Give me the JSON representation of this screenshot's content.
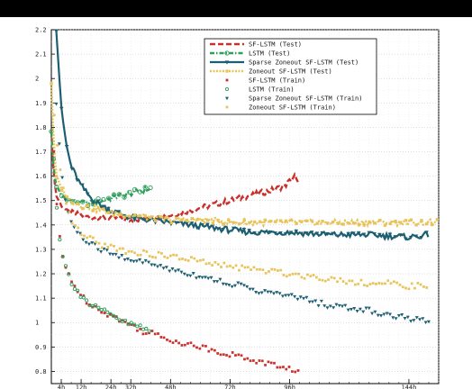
{
  "chart_data": {
    "type": "line",
    "title": "",
    "xlabel": "",
    "ylabel": "",
    "x_unit": "hours",
    "xlim": [
      0,
      156
    ],
    "ylim": [
      0.75,
      2.2
    ],
    "grid": true,
    "legend_position": "top-right",
    "x_ticks": [
      {
        "value": 4,
        "label": "4h"
      },
      {
        "value": 12,
        "label": "12h"
      },
      {
        "value": 24,
        "label": "24h"
      },
      {
        "value": 32,
        "label": "32h"
      },
      {
        "value": 48,
        "label": "48h"
      },
      {
        "value": 72,
        "label": "72h"
      },
      {
        "value": 96,
        "label": "96h"
      },
      {
        "value": 144,
        "label": "144h"
      }
    ],
    "y_ticks": [
      {
        "value": 0.8,
        "label": "0.8"
      },
      {
        "value": 0.9,
        "label": "0.9"
      },
      {
        "value": 1.0,
        "label": "1"
      },
      {
        "value": 1.1,
        "label": "1.1"
      },
      {
        "value": 1.2,
        "label": "1.2"
      },
      {
        "value": 1.3,
        "label": "1.3"
      },
      {
        "value": 1.4,
        "label": "1.4"
      },
      {
        "value": 1.5,
        "label": "1.5"
      },
      {
        "value": 1.6,
        "label": "1.6"
      },
      {
        "value": 1.7,
        "label": "1.7"
      },
      {
        "value": 1.8,
        "label": "1.8"
      },
      {
        "value": 1.9,
        "label": "1.9"
      },
      {
        "value": 2.0,
        "label": "2"
      },
      {
        "value": 2.1,
        "label": "2.1"
      },
      {
        "value": 2.2,
        "label": "2.2"
      }
    ],
    "series": [
      {
        "name": "SF-LSTM (Test)",
        "kind": "line",
        "style": "dashed",
        "marker": "none",
        "color": "#c9302c",
        "x": [
          0,
          1,
          2,
          4,
          6,
          8,
          12,
          16,
          20,
          24,
          32,
          40,
          48,
          56,
          64,
          72,
          80,
          88,
          94,
          96,
          98,
          100
        ],
        "y": [
          1.78,
          1.6,
          1.52,
          1.48,
          1.46,
          1.45,
          1.44,
          1.43,
          1.43,
          1.43,
          1.42,
          1.43,
          1.44,
          1.46,
          1.48,
          1.5,
          1.52,
          1.54,
          1.56,
          1.58,
          1.6,
          1.55
        ]
      },
      {
        "name": "LSTM (Test)",
        "kind": "line",
        "style": "dashdot",
        "marker": "circle",
        "color": "#2e9e5b",
        "x": [
          0,
          1,
          2,
          4,
          6,
          8,
          12,
          16,
          20,
          24,
          28,
          32,
          36,
          40
        ],
        "y": [
          1.78,
          1.62,
          1.56,
          1.52,
          1.51,
          1.5,
          1.49,
          1.49,
          1.5,
          1.51,
          1.52,
          1.53,
          1.54,
          1.55
        ]
      },
      {
        "name": "Sparse Zoneout SF-LSTM (Test)",
        "kind": "line",
        "style": "solid",
        "marker": "triangle",
        "color": "#1d5f72",
        "x": [
          2,
          4,
          6,
          8,
          12,
          16,
          20,
          24,
          32,
          40,
          48,
          56,
          64,
          72,
          80,
          96,
          112,
          128,
          144,
          152
        ],
        "y": [
          2.2,
          1.88,
          1.73,
          1.64,
          1.56,
          1.51,
          1.48,
          1.46,
          1.43,
          1.42,
          1.41,
          1.4,
          1.39,
          1.38,
          1.37,
          1.37,
          1.36,
          1.36,
          1.35,
          1.36
        ]
      },
      {
        "name": "Zoneout SF-LSTM (Test)",
        "kind": "line",
        "style": "dotted",
        "marker": "square",
        "color": "#e8c35a",
        "x": [
          0,
          1,
          2,
          4,
          6,
          8,
          12,
          16,
          20,
          24,
          32,
          40,
          48,
          56,
          64,
          72,
          80,
          96,
          112,
          128,
          144,
          156
        ],
        "y": [
          1.98,
          1.72,
          1.6,
          1.55,
          1.52,
          1.5,
          1.48,
          1.47,
          1.46,
          1.45,
          1.44,
          1.43,
          1.42,
          1.42,
          1.42,
          1.41,
          1.41,
          1.41,
          1.41,
          1.41,
          1.41,
          1.41
        ]
      },
      {
        "name": "SF-LSTM (Train)",
        "kind": "scatter",
        "marker": "square-small",
        "color": "#c9302c",
        "x": [
          1,
          2,
          3,
          4,
          5,
          6,
          8,
          10,
          12,
          14,
          16,
          18,
          20,
          22,
          24,
          26,
          28,
          30,
          32,
          34,
          36,
          38,
          40,
          44,
          48,
          52,
          56,
          60,
          64,
          68,
          72,
          76,
          80,
          84,
          88,
          92,
          96,
          100
        ],
        "y": [
          1.7,
          1.5,
          1.38,
          1.3,
          1.25,
          1.22,
          1.18,
          1.14,
          1.11,
          1.09,
          1.08,
          1.06,
          1.05,
          1.04,
          1.03,
          1.02,
          1.01,
          1.0,
          0.99,
          0.98,
          0.97,
          0.96,
          0.96,
          0.94,
          0.93,
          0.92,
          0.91,
          0.9,
          0.89,
          0.88,
          0.87,
          0.86,
          0.85,
          0.84,
          0.83,
          0.82,
          0.81,
          0.8
        ]
      },
      {
        "name": "LSTM (Train)",
        "kind": "scatter",
        "marker": "circle-small",
        "color": "#2e9e5b",
        "x": [
          1,
          2,
          3,
          4,
          5,
          6,
          8,
          10,
          12,
          14,
          16,
          18,
          20,
          22,
          24,
          26,
          28,
          30,
          32,
          34,
          36,
          38,
          40
        ],
        "y": [
          1.68,
          1.5,
          1.38,
          1.3,
          1.25,
          1.22,
          1.17,
          1.14,
          1.11,
          1.09,
          1.07,
          1.06,
          1.05,
          1.04,
          1.03,
          1.02,
          1.01,
          1.0,
          0.99,
          0.99,
          0.98,
          0.97,
          0.96
        ]
      },
      {
        "name": "Sparse Zoneout SF-LSTM (Train)",
        "kind": "scatter",
        "marker": "triangle-down",
        "color": "#1d5f72",
        "x": [
          2,
          4,
          6,
          8,
          12,
          16,
          20,
          24,
          28,
          32,
          40,
          48,
          56,
          64,
          72,
          80,
          88,
          96,
          104,
          112,
          120,
          128,
          136,
          144,
          152
        ],
        "y": [
          1.9,
          1.62,
          1.48,
          1.41,
          1.35,
          1.32,
          1.3,
          1.28,
          1.27,
          1.26,
          1.24,
          1.22,
          1.2,
          1.18,
          1.16,
          1.14,
          1.12,
          1.11,
          1.09,
          1.07,
          1.06,
          1.05,
          1.03,
          1.02,
          1.0
        ]
      },
      {
        "name": "Zoneout SF-LSTM (Train)",
        "kind": "scatter",
        "marker": "square-small",
        "color": "#e8c35a",
        "x": [
          0,
          2,
          4,
          6,
          8,
          12,
          16,
          20,
          24,
          32,
          40,
          48,
          56,
          64,
          72,
          80,
          88,
          96,
          104,
          112,
          120,
          128,
          136,
          144,
          152
        ],
        "y": [
          1.98,
          1.75,
          1.58,
          1.48,
          1.42,
          1.36,
          1.34,
          1.32,
          1.31,
          1.29,
          1.28,
          1.27,
          1.26,
          1.24,
          1.23,
          1.22,
          1.21,
          1.2,
          1.19,
          1.18,
          1.17,
          1.16,
          1.16,
          1.15,
          1.15
        ]
      }
    ]
  }
}
